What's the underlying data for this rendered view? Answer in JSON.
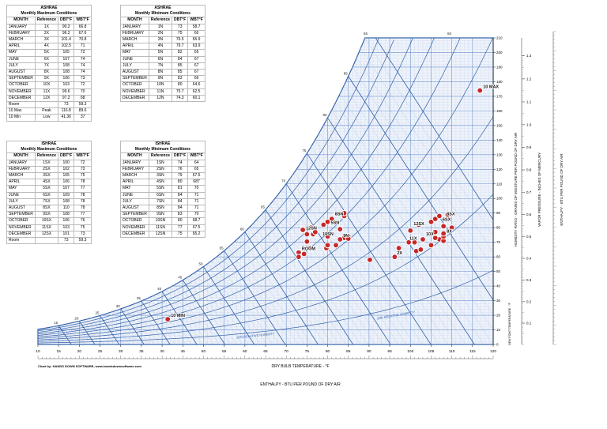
{
  "tables": [
    {
      "title": "ASHRAE",
      "subtitle": "Monthly Maximum Conditions",
      "headers": [
        "MONTH",
        "Reference",
        "DBT°F",
        "WBT°F"
      ],
      "rows": [
        [
          "JANUARY",
          "1X",
          "90.2",
          "66.8"
        ],
        [
          "FEBRUARY",
          "2X",
          "96.2",
          "67.6"
        ],
        [
          "MARCH",
          "3X",
          "101.4",
          "70.8"
        ],
        [
          "APRIL",
          "4X",
          "102.5",
          "71"
        ],
        [
          "MAY",
          "5X",
          "105",
          "72"
        ],
        [
          "JUNE",
          "6X",
          "107",
          "74"
        ],
        [
          "JULY",
          "7X",
          "108",
          "74"
        ],
        [
          "AUGUST",
          "8X",
          "108",
          "74"
        ],
        [
          "SEPTEMBER",
          "9X",
          "106",
          "73"
        ],
        [
          "OCTOBER",
          "10X",
          "103",
          "72"
        ],
        [
          "NOVEMBER",
          "11X",
          "99.6",
          "70"
        ],
        [
          "DECEMBER",
          "12X",
          "97.2",
          "68"
        ],
        [
          "Room",
          "",
          "73",
          "59.3"
        ],
        [
          "10 Max",
          "Peak",
          "116.8",
          "89.6"
        ],
        [
          "10 Min",
          "Low",
          "41.36",
          "37"
        ]
      ]
    },
    {
      "title": "ASHRAE",
      "subtitle": "Monthly Minimum Conditions",
      "headers": [
        "MONTH",
        "Reference",
        "DBT°F",
        "WBT°F"
      ],
      "rows": [
        [
          "JANUARY",
          "1N",
          "73",
          "58.7"
        ],
        [
          "FEBRUARY",
          "2N",
          "75",
          "60"
        ],
        [
          "MARCH",
          "3N",
          "76.5",
          "65.9"
        ],
        [
          "APRIL",
          "4N",
          "79.7",
          "63.9"
        ],
        [
          "MAY",
          "5N",
          "82",
          "65"
        ],
        [
          "JUNE",
          "6N",
          "84",
          "67"
        ],
        [
          "JULY",
          "7N",
          "85",
          "67"
        ],
        [
          "AUGUST",
          "8N",
          "85",
          "67"
        ],
        [
          "SEPTEMBER",
          "9N",
          "83",
          "66"
        ],
        [
          "OCTOBER",
          "10N",
          "80",
          "64.6"
        ],
        [
          "NOVEMBER",
          "11N",
          "75.7",
          "62.5"
        ],
        [
          "DECEMBER",
          "12N",
          "74.3",
          "60.1"
        ]
      ]
    },
    {
      "title": "ISHRAE",
      "subtitle": "Monthly Maximum Conditions",
      "headers": [
        "MONTH",
        "Reference",
        "DBT°F",
        "WBT°F"
      ],
      "rows": [
        [
          "JANUARY",
          "1SX",
          "100",
          "72"
        ],
        [
          "FEBRUARY",
          "2SX",
          "102",
          "73"
        ],
        [
          "MARCH",
          "3SX",
          "105",
          "75"
        ],
        [
          "APRIL",
          "4SX",
          "106",
          "78"
        ],
        [
          "MAY",
          "5SX",
          "107",
          "77"
        ],
        [
          "JUNE",
          "6SX",
          "109",
          "78"
        ],
        [
          "JULY",
          "7SX",
          "108",
          "78"
        ],
        [
          "AUGUST",
          "8SX",
          "110",
          "78"
        ],
        [
          "SEPTEMBER",
          "9SX",
          "108",
          "77"
        ],
        [
          "OCTOBER",
          "10SX",
          "106",
          "76"
        ],
        [
          "NOVEMBER",
          "11SX",
          "103",
          "75"
        ],
        [
          "DECEMBER",
          "12SX",
          "101",
          "73"
        ],
        [
          "Room",
          "",
          "73",
          "59.3"
        ]
      ]
    },
    {
      "title": "ISHRAE",
      "subtitle": "Monthly Minimum Conditions",
      "headers": [
        "MONTH",
        "Reference",
        "DBT°F",
        "WBT°F"
      ],
      "rows": [
        [
          "JANUARY",
          "1SN",
          "74",
          "64"
        ],
        [
          "FEBRUARY",
          "2SN",
          "76",
          "65"
        ],
        [
          "MARCH",
          "3SN",
          "79",
          "67.5"
        ],
        [
          "APRIL",
          "4SN",
          "80",
          "687"
        ],
        [
          "MAY",
          "5SN",
          "81",
          "70"
        ],
        [
          "JUNE",
          "6SN",
          "84",
          "71"
        ],
        [
          "JULY",
          "7SN",
          "84",
          "71"
        ],
        [
          "AUGUST",
          "8SN",
          "84",
          "71"
        ],
        [
          "SEPTEMBER",
          "9SN",
          "83",
          "70"
        ],
        [
          "OCTOBER",
          "10SN",
          "80",
          "68.7"
        ],
        [
          "NOVEMBER",
          "11SN",
          "77",
          "67.5"
        ],
        [
          "DECEMBER",
          "12SN",
          "75",
          "65.2"
        ]
      ]
    }
  ],
  "chart_data": {
    "type": "scatter",
    "xlabel": "DRY BULB TEMPERATURE - °F",
    "xlabel2": "ENTHALPY - BTU PER POUND OF DRY AIR",
    "ylabel_left": "HUMIDITY RATIO - GRAINS OF MOISTURE PER POUND OF DRY AIR",
    "ylabel_mid": "VAPOR PRESSURE - INCHES OF MERCURY",
    "ylabel_right": "ENTHALPY - BTU PER POUND OF DRY AIR",
    "ylabel_far": "DEW POINT TEMPERATURE - °F",
    "credit": "Chart by: HANDS DOWN SOFTWARE, www.handsdownsoftware.com",
    "xlim": [
      10,
      120
    ],
    "ylim": [
      0,
      210
    ],
    "x_ticks": [
      "10",
      "15",
      "20",
      "25",
      "30",
      "35",
      "40",
      "45",
      "50",
      "55",
      "60",
      "65",
      "70",
      "75",
      "80",
      "85",
      "90",
      "95",
      "100",
      "105",
      "110",
      "115",
      "120"
    ],
    "y_ticks": [
      "0",
      "10",
      "20",
      "30",
      "40",
      "50",
      "60",
      "70",
      "80",
      "90",
      "100",
      "110",
      "120",
      "130",
      "140",
      "150",
      "160",
      "170",
      "180",
      "190",
      "200",
      "210"
    ],
    "vp_ticks": [
      "0.1",
      "0.2",
      "0.3",
      "0.4",
      "0.5",
      "0.6",
      "0.7",
      "0.8",
      "0.9",
      "1.0",
      "1.1",
      "1.2",
      "1.3"
    ],
    "wb_labels": [
      "15",
      "20",
      "25",
      "30",
      "35",
      "40",
      "45",
      "50",
      "55",
      "60",
      "65",
      "70",
      "75",
      "80",
      "85"
    ],
    "enthalpy_labels": [
      "60",
      "55"
    ],
    "rh_labels": [
      "10% RELATIVE HUMIDITY",
      "20% RELATIVE HUMIDITY"
    ],
    "points_x": [
      41.36,
      116.8,
      73,
      73,
      75,
      76.5,
      79.7,
      82,
      84,
      85,
      85,
      83,
      80,
      75.7,
      74.3,
      74,
      76,
      79,
      80,
      81,
      84,
      84,
      83,
      80,
      77,
      75,
      90.2,
      96.2,
      101.4,
      102.5,
      105,
      107,
      108,
      108,
      106,
      103,
      99.6,
      97.2,
      100,
      102,
      105,
      106,
      107,
      109,
      108,
      110,
      108,
      106,
      103,
      101
    ],
    "points_y": [
      17.3,
      174,
      63,
      60,
      70.5,
      75.5,
      66,
      68,
      73,
      74,
      72.5,
      72,
      68,
      66,
      62,
      78.5,
      80,
      82,
      84,
      86,
      88,
      90,
      79,
      74,
      77,
      75.5,
      58,
      60,
      64,
      65,
      68,
      72,
      71,
      74,
      73,
      72,
      70,
      66,
      78,
      82,
      84,
      86,
      88,
      89,
      81,
      80,
      76,
      77,
      72,
      70
    ],
    "labels": [
      {
        "text": "10 MIN",
        "x": 41.36,
        "y": 17.3
      },
      {
        "text": "10 MAX",
        "x": 116.8,
        "y": 174
      },
      {
        "text": "ROOM",
        "x": 73,
        "y": 63
      },
      {
        "text": "12SN",
        "x": 74,
        "y": 77
      },
      {
        "text": "5SN",
        "x": 80,
        "y": 81
      },
      {
        "text": "8SN",
        "x": 81,
        "y": 87
      },
      {
        "text": "10SN",
        "x": 78,
        "y": 73
      },
      {
        "text": "9N",
        "x": 83,
        "y": 72
      },
      {
        "text": "11X",
        "x": 99,
        "y": 70
      },
      {
        "text": "10X",
        "x": 103,
        "y": 73
      },
      {
        "text": "2X",
        "x": 96,
        "y": 60
      },
      {
        "text": "12SX",
        "x": 100,
        "y": 80
      },
      {
        "text": "8X",
        "x": 108,
        "y": 75
      },
      {
        "text": "6SX",
        "x": 107,
        "y": 83
      },
      {
        "text": "8SX",
        "x": 108,
        "y": 87
      }
    ]
  }
}
